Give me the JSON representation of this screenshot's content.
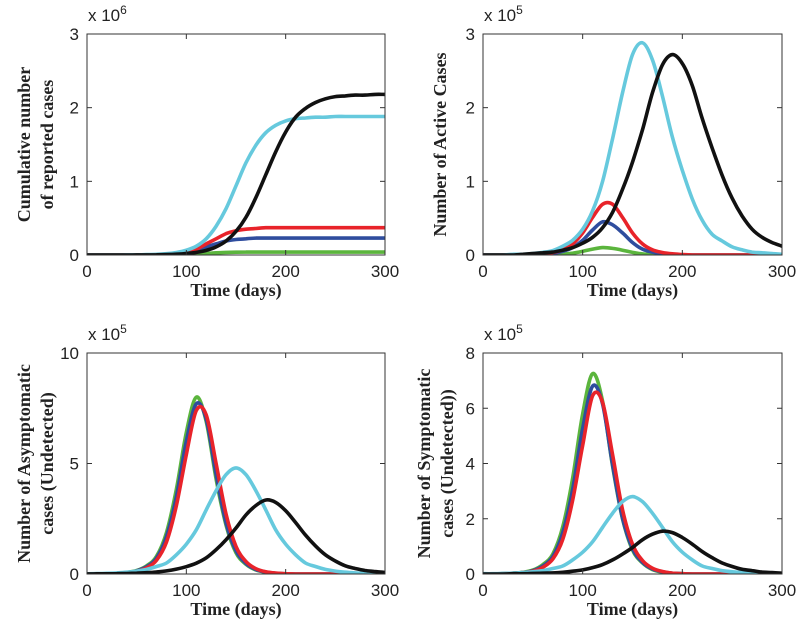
{
  "colors": {
    "cyan": "#66c9dd",
    "black": "#111111",
    "red": "#e8232a",
    "blue": "#2f4d9e",
    "green": "#5bb53d"
  },
  "chart_data": [
    {
      "type": "line",
      "id": "cumulative",
      "ylabel_lines": [
        "Cumulative number",
        "of reported cases"
      ],
      "xlabel": "Time (days)",
      "exponent_prefix": "x 10",
      "exponent_power": "6",
      "xlim": [
        0,
        300
      ],
      "ylim": [
        0,
        3
      ],
      "xticks": [
        0,
        100,
        200,
        300
      ],
      "xtick_labels": [
        "0",
        "100",
        "200",
        "300"
      ],
      "yticks": [
        0,
        1,
        2,
        3
      ],
      "ytick_labels": [
        "0",
        "1",
        "2",
        "3"
      ],
      "x": [
        0,
        10,
        20,
        30,
        40,
        50,
        60,
        70,
        80,
        90,
        100,
        110,
        120,
        130,
        140,
        150,
        160,
        170,
        180,
        190,
        200,
        210,
        220,
        230,
        240,
        250,
        260,
        270,
        280,
        290,
        300
      ],
      "series": [
        {
          "name": "green",
          "color_key": "green",
          "values": [
            0,
            0,
            0,
            0,
            0,
            0,
            0,
            0,
            0.001,
            0.003,
            0.007,
            0.015,
            0.02,
            0.03,
            0.035,
            0.038,
            0.04,
            0.04,
            0.04,
            0.04,
            0.04,
            0.04,
            0.04,
            0.04,
            0.04,
            0.04,
            0.04,
            0.04,
            0.04,
            0.04,
            0.04
          ]
        },
        {
          "name": "blue",
          "color_key": "blue",
          "values": [
            0,
            0,
            0,
            0,
            0,
            0,
            0.001,
            0.003,
            0.007,
            0.015,
            0.03,
            0.06,
            0.11,
            0.15,
            0.19,
            0.21,
            0.22,
            0.23,
            0.23,
            0.23,
            0.23,
            0.23,
            0.23,
            0.23,
            0.23,
            0.23,
            0.23,
            0.23,
            0.23,
            0.23,
            0.23
          ]
        },
        {
          "name": "red",
          "color_key": "red",
          "values": [
            0,
            0,
            0,
            0,
            0,
            0,
            0.002,
            0.004,
            0.009,
            0.02,
            0.04,
            0.08,
            0.15,
            0.22,
            0.29,
            0.33,
            0.35,
            0.36,
            0.37,
            0.37,
            0.37,
            0.37,
            0.37,
            0.37,
            0.37,
            0.37,
            0.37,
            0.37,
            0.37,
            0.37,
            0.37
          ]
        },
        {
          "name": "cyan",
          "color_key": "cyan",
          "values": [
            0,
            0,
            0,
            0,
            0.001,
            0.002,
            0.005,
            0.009,
            0.018,
            0.034,
            0.065,
            0.12,
            0.22,
            0.39,
            0.63,
            0.94,
            1.25,
            1.49,
            1.66,
            1.76,
            1.82,
            1.85,
            1.86,
            1.87,
            1.87,
            1.88,
            1.88,
            1.88,
            1.88,
            1.88,
            1.88
          ]
        },
        {
          "name": "black",
          "color_key": "black",
          "values": [
            0,
            0,
            0,
            0,
            0,
            0.001,
            0.002,
            0.003,
            0.006,
            0.011,
            0.02,
            0.035,
            0.062,
            0.11,
            0.19,
            0.32,
            0.51,
            0.78,
            1.09,
            1.4,
            1.67,
            1.87,
            1.99,
            2.07,
            2.12,
            2.15,
            2.16,
            2.17,
            2.17,
            2.18,
            2.18
          ]
        }
      ]
    },
    {
      "type": "line",
      "id": "active",
      "ylabel_lines": [
        "Number of Active Cases"
      ],
      "xlabel": "Time (days)",
      "exponent_prefix": "x 10",
      "exponent_power": "5",
      "xlim": [
        0,
        300
      ],
      "ylim": [
        0,
        3
      ],
      "xticks": [
        0,
        100,
        200,
        300
      ],
      "xtick_labels": [
        "0",
        "100",
        "200",
        "300"
      ],
      "yticks": [
        0,
        1,
        2,
        3
      ],
      "ytick_labels": [
        "0",
        "1",
        "2",
        "3"
      ],
      "x": [
        0,
        10,
        20,
        30,
        40,
        50,
        60,
        70,
        80,
        90,
        100,
        110,
        120,
        130,
        140,
        150,
        160,
        170,
        180,
        190,
        200,
        210,
        220,
        230,
        240,
        250,
        260,
        270,
        280,
        290,
        300
      ],
      "series": [
        {
          "name": "green",
          "color_key": "green",
          "values": [
            0,
            0,
            0,
            0,
            0,
            0,
            0,
            0.005,
            0.01,
            0.025,
            0.05,
            0.08,
            0.1,
            0.09,
            0.065,
            0.035,
            0.015,
            0.007,
            0.003,
            0,
            0,
            0,
            0,
            0,
            0,
            0,
            0,
            0,
            0,
            0,
            0
          ]
        },
        {
          "name": "blue",
          "color_key": "blue",
          "values": [
            0,
            0,
            0,
            0,
            0,
            0.005,
            0.01,
            0.02,
            0.05,
            0.1,
            0.2,
            0.34,
            0.45,
            0.41,
            0.3,
            0.17,
            0.08,
            0.04,
            0.02,
            0.01,
            0,
            0,
            0,
            0,
            0,
            0,
            0,
            0,
            0,
            0,
            0
          ]
        },
        {
          "name": "red",
          "color_key": "red",
          "values": [
            0,
            0,
            0,
            0,
            0,
            0.007,
            0.016,
            0.034,
            0.07,
            0.15,
            0.3,
            0.51,
            0.69,
            0.69,
            0.51,
            0.3,
            0.15,
            0.07,
            0.034,
            0.016,
            0.007,
            0,
            0,
            0,
            0,
            0,
            0,
            0,
            0,
            0,
            0
          ]
        },
        {
          "name": "cyan",
          "color_key": "cyan",
          "values": [
            0,
            0,
            0,
            0.01,
            0.01,
            0.02,
            0.035,
            0.06,
            0.12,
            0.2,
            0.35,
            0.6,
            1.0,
            1.58,
            2.2,
            2.72,
            2.88,
            2.65,
            2.16,
            1.6,
            1.15,
            0.76,
            0.47,
            0.28,
            0.19,
            0.11,
            0.07,
            0.04,
            0.03,
            0.02,
            0.01
          ]
        },
        {
          "name": "black",
          "color_key": "black",
          "values": [
            0,
            0,
            0,
            0,
            0.01,
            0.02,
            0.03,
            0.04,
            0.065,
            0.1,
            0.16,
            0.24,
            0.37,
            0.58,
            0.89,
            1.26,
            1.7,
            2.2,
            2.58,
            2.72,
            2.6,
            2.3,
            1.85,
            1.45,
            1.08,
            0.77,
            0.53,
            0.35,
            0.24,
            0.17,
            0.12
          ]
        }
      ]
    },
    {
      "type": "line",
      "id": "asymptomatic",
      "ylabel_lines": [
        "Number of Asymptomatic",
        "cases (Undetected)"
      ],
      "xlabel": "Time (days)",
      "exponent_prefix": "x 10",
      "exponent_power": "5",
      "xlim": [
        0,
        300
      ],
      "ylim": [
        0,
        10
      ],
      "xticks": [
        0,
        100,
        200,
        300
      ],
      "xtick_labels": [
        "0",
        "100",
        "200",
        "300"
      ],
      "yticks": [
        0,
        5,
        10
      ],
      "ytick_labels": [
        "0",
        "5",
        "10"
      ],
      "x": [
        0,
        10,
        20,
        30,
        40,
        50,
        60,
        70,
        80,
        90,
        100,
        110,
        120,
        130,
        140,
        150,
        160,
        170,
        180,
        190,
        200,
        210,
        220,
        230,
        240,
        250,
        260,
        270,
        280,
        290,
        300
      ],
      "series": [
        {
          "name": "green",
          "color_key": "green",
          "values": [
            0,
            0.004,
            0.01,
            0.03,
            0.07,
            0.16,
            0.37,
            0.8,
            1.88,
            3.84,
            6.4,
            8.0,
            6.9,
            4.3,
            2.2,
            0.96,
            0.44,
            0.18,
            0.08,
            0.03,
            0.01,
            0,
            0,
            0,
            0,
            0,
            0,
            0,
            0,
            0,
            0
          ]
        },
        {
          "name": "blue",
          "color_key": "blue",
          "values": [
            0,
            0,
            0.01,
            0.03,
            0.06,
            0.14,
            0.33,
            0.72,
            1.7,
            3.5,
            6.0,
            7.7,
            7.0,
            4.5,
            2.3,
            1.05,
            0.48,
            0.2,
            0.09,
            0.03,
            0.01,
            0,
            0,
            0,
            0,
            0,
            0,
            0,
            0,
            0,
            0
          ]
        },
        {
          "name": "red",
          "color_key": "red",
          "values": [
            0,
            0,
            0.01,
            0.02,
            0.05,
            0.12,
            0.28,
            0.62,
            1.45,
            3.1,
            5.4,
            7.4,
            7.2,
            5.0,
            2.7,
            1.25,
            0.57,
            0.24,
            0.1,
            0.04,
            0.015,
            0,
            0,
            0,
            0,
            0,
            0,
            0,
            0,
            0,
            0
          ]
        },
        {
          "name": "cyan",
          "color_key": "cyan",
          "values": [
            0.01,
            0.017,
            0.03,
            0.05,
            0.08,
            0.13,
            0.21,
            0.34,
            0.5,
            0.87,
            1.35,
            2.0,
            2.9,
            3.77,
            4.5,
            4.8,
            4.5,
            3.77,
            2.9,
            2.0,
            1.35,
            0.87,
            0.5,
            0.34,
            0.21,
            0.13,
            0.08,
            0.05,
            0.03,
            0.02,
            0.01
          ]
        },
        {
          "name": "black",
          "color_key": "black",
          "values": [
            0.004,
            0.007,
            0.01,
            0.015,
            0.024,
            0.038,
            0.06,
            0.09,
            0.14,
            0.22,
            0.33,
            0.49,
            0.73,
            1.1,
            1.55,
            2.08,
            2.67,
            3.1,
            3.35,
            3.24,
            2.86,
            2.33,
            1.76,
            1.27,
            0.87,
            0.59,
            0.37,
            0.25,
            0.16,
            0.11,
            0.07
          ]
        }
      ]
    },
    {
      "type": "line",
      "id": "symptomatic",
      "ylabel_lines": [
        "Number of Symptomatic",
        "cases (Undetected))"
      ],
      "xlabel": "Time (days)",
      "exponent_prefix": "x 10",
      "exponent_power": "5",
      "xlim": [
        0,
        300
      ],
      "ylim": [
        0,
        8
      ],
      "xticks": [
        0,
        100,
        200,
        300
      ],
      "xtick_labels": [
        "0",
        "100",
        "200",
        "300"
      ],
      "yticks": [
        0,
        2,
        4,
        6,
        8
      ],
      "ytick_labels": [
        "0",
        "2",
        "4",
        "6",
        "8"
      ],
      "x": [
        0,
        10,
        20,
        30,
        40,
        50,
        60,
        70,
        80,
        90,
        100,
        110,
        120,
        130,
        140,
        150,
        160,
        170,
        180,
        190,
        200,
        210,
        220,
        230,
        240,
        250,
        260,
        270,
        280,
        290,
        300
      ],
      "series": [
        {
          "name": "green",
          "color_key": "green",
          "values": [
            0,
            0,
            0.01,
            0.03,
            0.06,
            0.14,
            0.34,
            0.72,
            1.7,
            3.48,
            5.8,
            7.25,
            6.25,
            3.9,
            2.0,
            0.87,
            0.4,
            0.16,
            0.07,
            0.03,
            0.01,
            0,
            0,
            0,
            0,
            0,
            0,
            0,
            0,
            0,
            0
          ]
        },
        {
          "name": "blue",
          "color_key": "blue",
          "values": [
            0,
            0,
            0.01,
            0.03,
            0.05,
            0.12,
            0.29,
            0.63,
            1.49,
            3.07,
            5.27,
            6.8,
            6.15,
            3.95,
            2.02,
            0.92,
            0.42,
            0.18,
            0.08,
            0.03,
            0.01,
            0,
            0,
            0,
            0,
            0,
            0,
            0,
            0,
            0,
            0
          ]
        },
        {
          "name": "red",
          "color_key": "red",
          "values": [
            0,
            0,
            0.01,
            0.02,
            0.05,
            0.1,
            0.24,
            0.54,
            1.25,
            2.68,
            4.66,
            6.45,
            6.21,
            4.32,
            2.33,
            1.08,
            0.49,
            0.21,
            0.09,
            0.03,
            0.01,
            0,
            0,
            0,
            0,
            0,
            0,
            0,
            0,
            0,
            0
          ]
        },
        {
          "name": "cyan",
          "color_key": "cyan",
          "values": [
            0.01,
            0.01,
            0.02,
            0.03,
            0.05,
            0.08,
            0.12,
            0.2,
            0.29,
            0.51,
            0.79,
            1.17,
            1.69,
            2.2,
            2.62,
            2.8,
            2.62,
            2.2,
            1.69,
            1.17,
            0.79,
            0.51,
            0.29,
            0.2,
            0.12,
            0.08,
            0.05,
            0.03,
            0.02,
            0.01,
            0.01
          ]
        },
        {
          "name": "black",
          "color_key": "black",
          "values": [
            0,
            0,
            0,
            0.01,
            0.01,
            0.02,
            0.03,
            0.04,
            0.06,
            0.1,
            0.15,
            0.23,
            0.34,
            0.51,
            0.72,
            0.96,
            1.24,
            1.44,
            1.55,
            1.5,
            1.32,
            1.08,
            0.81,
            0.59,
            0.4,
            0.27,
            0.17,
            0.12,
            0.07,
            0.05,
            0.03
          ]
        }
      ]
    }
  ]
}
